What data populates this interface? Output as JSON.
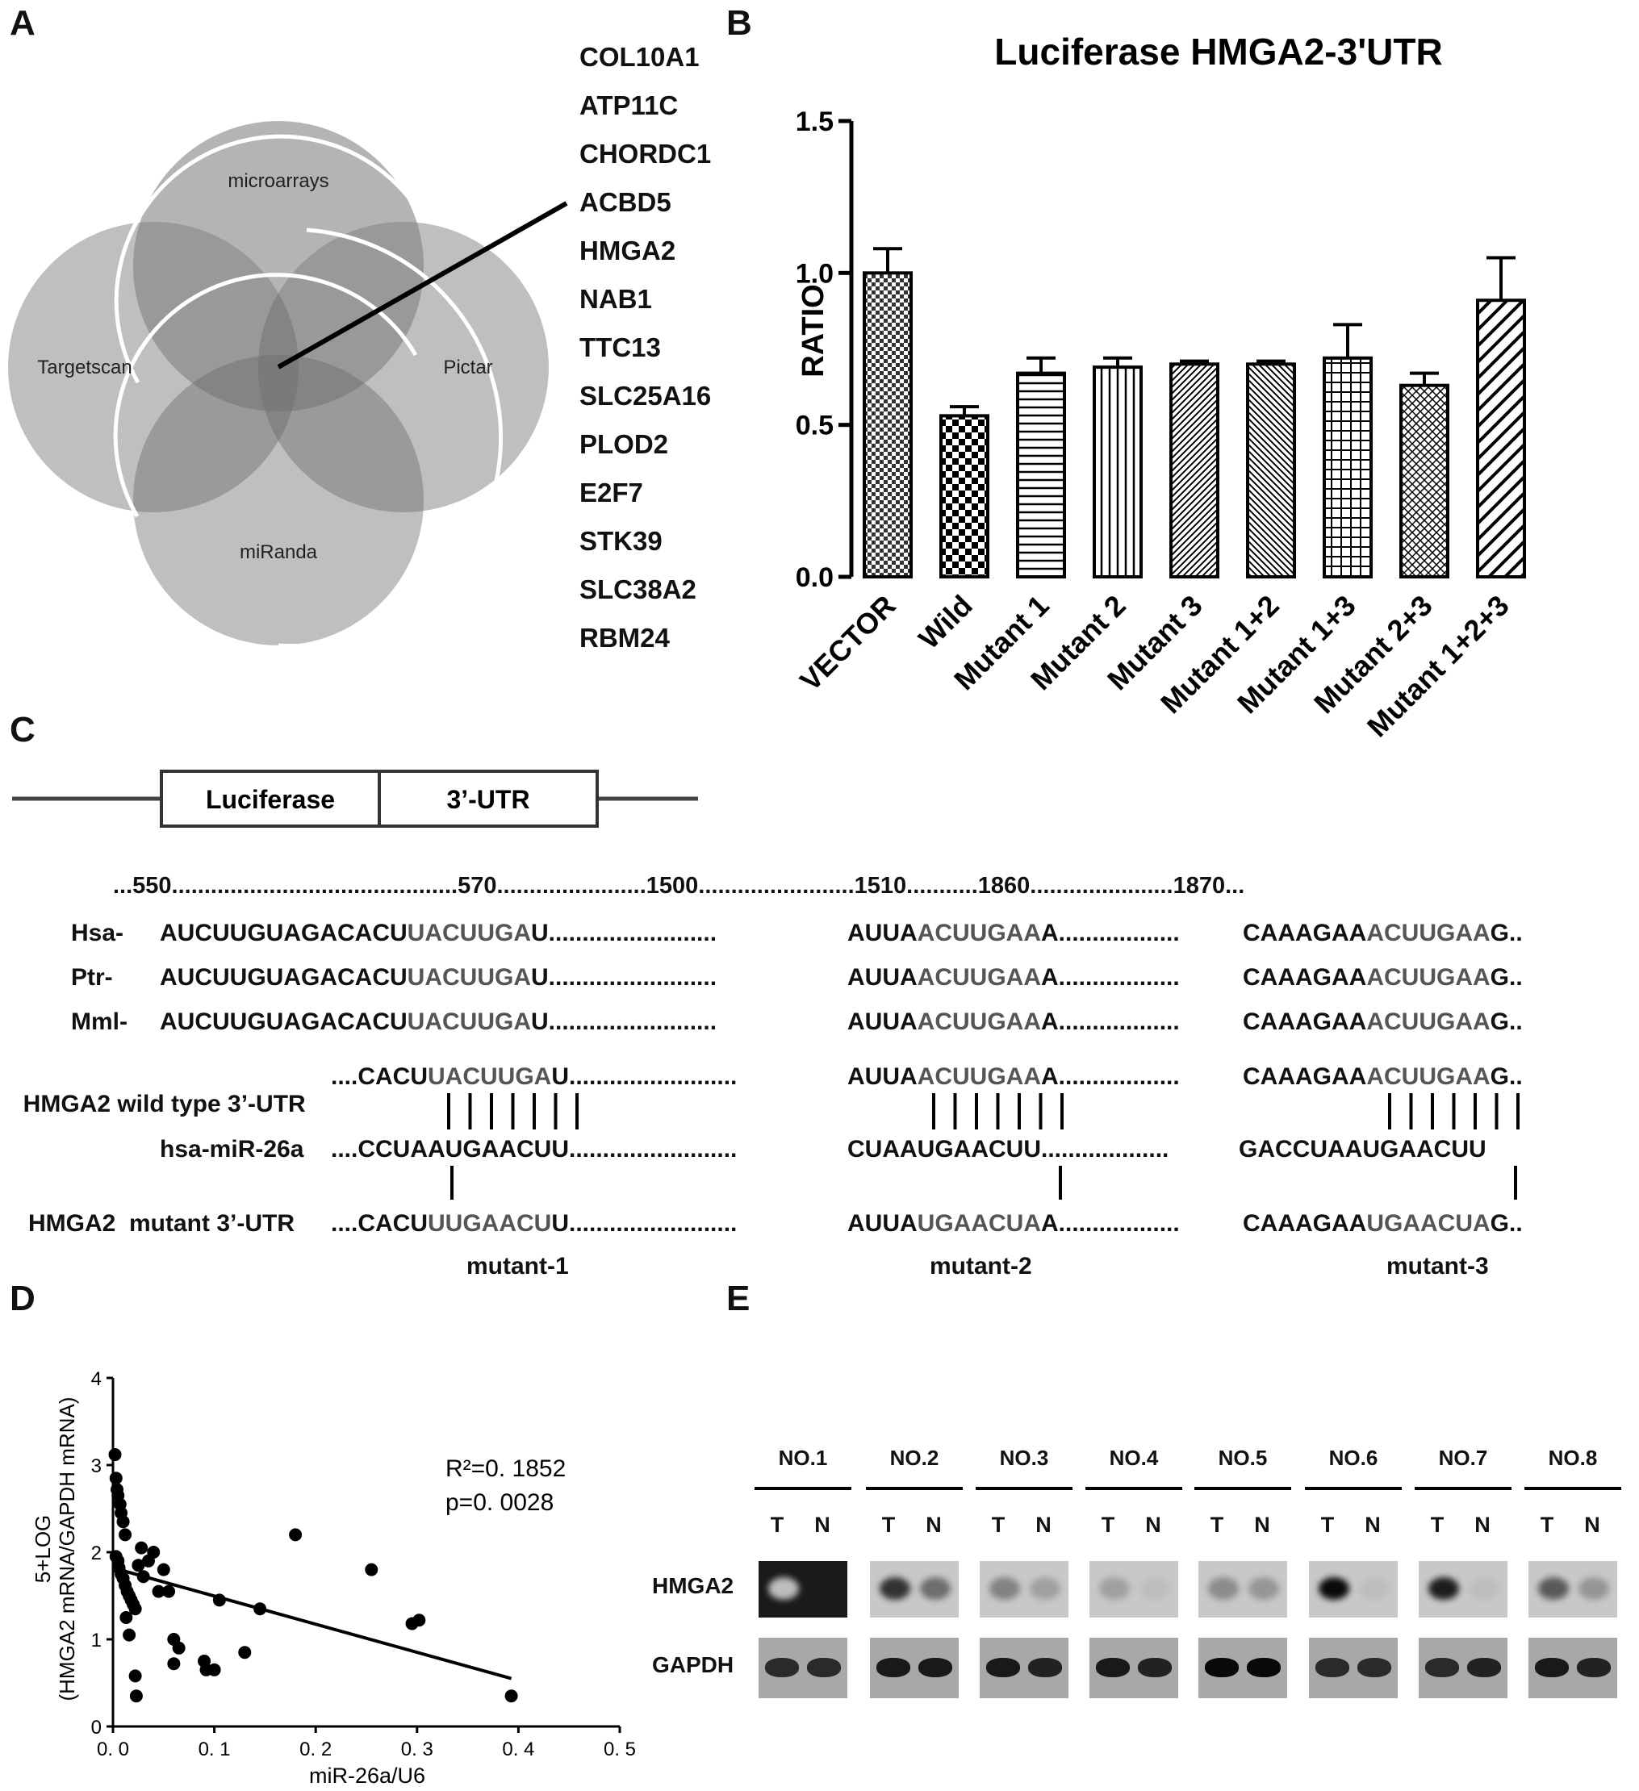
{
  "panels": {
    "A": "A",
    "B": "B",
    "C": "C",
    "D": "D",
    "E": "E"
  },
  "panelA": {
    "circles": [
      "microarrays",
      "Targetscan",
      "Pictar",
      "miRanda"
    ],
    "genes": [
      "COL10A1",
      "ATP11C",
      "CHORDC1",
      "ACBD5",
      "HMGA2",
      "NAB1",
      "TTC13",
      "SLC25A16",
      "PLOD2",
      "E2F7",
      "STK39",
      "SLC38A2",
      "RBM24"
    ]
  },
  "panelB": {
    "chart_data": {
      "type": "bar",
      "title": "Luciferase HMGA2-3'UTR",
      "ylabel": "RATIO",
      "xlabel": "",
      "categories": [
        "VECTOR",
        "Wild",
        "Mutant 1",
        "Mutant 2",
        "Mutant 3",
        "Mutant 1+2",
        "Mutant 1+3",
        "Mutant 2+3",
        "Mutant 1+2+3"
      ],
      "values": [
        1.0,
        0.53,
        0.67,
        0.69,
        0.7,
        0.7,
        0.72,
        0.63,
        0.91
      ],
      "errors": [
        0.08,
        0.03,
        0.05,
        0.03,
        0.01,
        0.01,
        0.11,
        0.04,
        0.14
      ],
      "ylim": [
        0,
        1.5
      ],
      "yticks": [
        "0.0",
        "0.5",
        "1.0",
        "1.5"
      ]
    }
  },
  "panelC": {
    "construct": {
      "left_label": "Luciferase",
      "right_label": "3’-UTR"
    },
    "positions": "...550............................................570.......................1500........................1510...........1860......................1870...",
    "species": [
      {
        "label": "Hsa-",
        "s1a": "AUCUUGUAGACACU",
        "s1b": "UACUUGA",
        "s1c": "U",
        "dots1": ".........................",
        "s2a": "AUUA",
        "s2b": "ACUUGAA",
        "s2c": "A",
        "dots2": "..................",
        "s3a": "CAAAGAA",
        "s3b": "ACUUGAA",
        "s3c": "G.."
      },
      {
        "label": "Ptr-",
        "s1a": "AUCUUGUAGACACU",
        "s1b": "UACUUGA",
        "s1c": "U",
        "dots1": ".........................",
        "s2a": "AUUA",
        "s2b": "ACUUGAA",
        "s2c": "A",
        "dots2": "..................",
        "s3a": "CAAAGAA",
        "s3b": "ACUUGAA",
        "s3c": "G.."
      },
      {
        "label": "Mml-",
        "s1a": "AUCUUGUAGACACU",
        "s1b": "UACUUGA",
        "s1c": "U",
        "dots1": ".........................",
        "s2a": "AUUA",
        "s2b": "ACUUGAA",
        "s2c": "A",
        "dots2": "..................",
        "s3a": "CAAAGAA",
        "s3b": "ACUUGAA",
        "s3c": "G.."
      }
    ],
    "wild": {
      "label": "HMGA2 wild type 3’-UTR",
      "s1a": "....CACU",
      "s1b": "UACUUGA",
      "s1c": "U",
      "dots1": ".........................",
      "s2a": "AUUA",
      "s2b": "ACUUGAA",
      "s2c": "A",
      "dots2": "..................",
      "s3a": "CAAAGAA",
      "s3b": "ACUUGAA",
      "s3c": "G.."
    },
    "mir": {
      "label": "hsa-miR-26a",
      "s1": "....CCUAAUGAACUU",
      "dots1": ".........................",
      "s2": "CUAAUGAACUU",
      "dots2": "...................",
      "s3": "GACCUAAUGAACUU"
    },
    "mutant": {
      "label": "HMGA2  mutant 3’-UTR",
      "s1a": "....CACU",
      "s1b": "UUGAACU",
      "s1c": "U",
      "dots1": ".........................",
      "s2a": "AUUA",
      "s2b": "UGAACUA",
      "s2c": "A",
      "dots2": "..................",
      "s3a": "CAAAGAA",
      "s3b": "UGAACUA",
      "s3c": "G.."
    },
    "mutant_labels": [
      "mutant-1",
      "mutant-2",
      "mutant-3"
    ]
  },
  "panelD": {
    "chart_data": {
      "type": "scatter",
      "xlabel": "miR-26a/U6",
      "ylabel_line1": "5+LOG",
      "ylabel_line2": "(HMGA2 mRNA/GAPDH mRNA)",
      "xlim": [
        0,
        0.5
      ],
      "ylim": [
        0,
        4
      ],
      "xticks": [
        "0. 0",
        "0. 1",
        "0. 2",
        "0. 3",
        "0. 4",
        "0. 5"
      ],
      "yticks": [
        "0",
        "1",
        "2",
        "3",
        "4"
      ],
      "annotation_r2": "R²=0. 1852",
      "annotation_p": "p=0. 0028",
      "points": [
        [
          0.002,
          3.12
        ],
        [
          0.003,
          2.85
        ],
        [
          0.004,
          2.72
        ],
        [
          0.005,
          2.65
        ],
        [
          0.007,
          2.55
        ],
        [
          0.008,
          2.45
        ],
        [
          0.01,
          2.35
        ],
        [
          0.012,
          2.2
        ],
        [
          0.003,
          1.95
        ],
        [
          0.005,
          1.9
        ],
        [
          0.006,
          1.82
        ],
        [
          0.008,
          1.75
        ],
        [
          0.01,
          1.7
        ],
        [
          0.012,
          1.62
        ],
        [
          0.014,
          1.55
        ],
        [
          0.016,
          1.5
        ],
        [
          0.018,
          1.45
        ],
        [
          0.02,
          1.4
        ],
        [
          0.022,
          1.35
        ],
        [
          0.013,
          1.25
        ],
        [
          0.016,
          1.05
        ],
        [
          0.022,
          0.58
        ],
        [
          0.023,
          0.35
        ],
        [
          0.025,
          1.85
        ],
        [
          0.028,
          2.05
        ],
        [
          0.03,
          1.72
        ],
        [
          0.035,
          1.9
        ],
        [
          0.04,
          2.0
        ],
        [
          0.045,
          1.55
        ],
        [
          0.05,
          1.8
        ],
        [
          0.055,
          1.55
        ],
        [
          0.06,
          1.0
        ],
        [
          0.06,
          0.72
        ],
        [
          0.065,
          0.9
        ],
        [
          0.09,
          0.75
        ],
        [
          0.092,
          0.65
        ],
        [
          0.1,
          0.65
        ],
        [
          0.105,
          1.45
        ],
        [
          0.13,
          0.85
        ],
        [
          0.145,
          1.35
        ],
        [
          0.18,
          2.2
        ],
        [
          0.255,
          1.8
        ],
        [
          0.295,
          1.18
        ],
        [
          0.302,
          1.22
        ],
        [
          0.393,
          0.35
        ]
      ],
      "trendline": [
        [
          0.0,
          1.82
        ],
        [
          0.393,
          0.55
        ]
      ]
    }
  },
  "panelE": {
    "samples": [
      "NO.1",
      "NO.2",
      "NO.3",
      "NO.4",
      "NO.5",
      "NO.6",
      "NO.7",
      "NO.8"
    ],
    "lane_t": "T",
    "lane_n": "N",
    "rows": [
      "HMGA2",
      "GAPDH"
    ],
    "hmga2_intensity": [
      [
        0.85,
        0.05
      ],
      [
        0.75,
        0.45
      ],
      [
        0.35,
        0.2
      ],
      [
        0.2,
        0.05
      ],
      [
        0.3,
        0.25
      ],
      [
        0.95,
        0.05
      ],
      [
        0.85,
        0.05
      ],
      [
        0.55,
        0.25
      ]
    ],
    "gapdh_intensity": [
      [
        0.75,
        0.75
      ],
      [
        0.85,
        0.85
      ],
      [
        0.85,
        0.8
      ],
      [
        0.85,
        0.8
      ],
      [
        0.95,
        0.95
      ],
      [
        0.75,
        0.75
      ],
      [
        0.75,
        0.8
      ],
      [
        0.85,
        0.8
      ]
    ]
  }
}
